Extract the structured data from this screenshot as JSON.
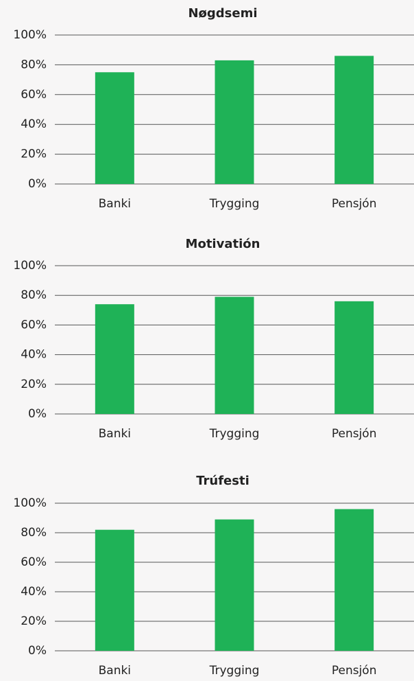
{
  "chart_data": [
    {
      "type": "bar",
      "title": "Nøgdsemi",
      "categories": [
        "Banki",
        "Trygging",
        "Pensjón"
      ],
      "values": [
        75,
        83,
        86
      ],
      "color": "#1fb257",
      "ylim": [
        0,
        100
      ],
      "yticks": [
        {
          "value": 0,
          "label": "0%"
        },
        {
          "value": 20,
          "label": "20%"
        },
        {
          "value": 40,
          "label": "40%"
        },
        {
          "value": 60,
          "label": "60%"
        },
        {
          "value": 80,
          "label": "80%"
        },
        {
          "value": 100,
          "label": "100%"
        }
      ],
      "grid": true
    },
    {
      "type": "bar",
      "title": "Motivatión",
      "categories": [
        "Banki",
        "Trygging",
        "Pensjón"
      ],
      "values": [
        74,
        79,
        76
      ],
      "color": "#1fb257",
      "ylim": [
        0,
        100
      ],
      "yticks": [
        {
          "value": 0,
          "label": "0%"
        },
        {
          "value": 20,
          "label": "20%"
        },
        {
          "value": 40,
          "label": "40%"
        },
        {
          "value": 60,
          "label": "60%"
        },
        {
          "value": 80,
          "label": "80%"
        },
        {
          "value": 100,
          "label": "100%"
        }
      ],
      "grid": true
    },
    {
      "type": "bar",
      "title": "Trúfesti",
      "categories": [
        "Banki",
        "Trygging",
        "Pensjón"
      ],
      "values": [
        82,
        89,
        96
      ],
      "color": "#1fb257",
      "ylim": [
        0,
        100
      ],
      "yticks": [
        {
          "value": 0,
          "label": "0%"
        },
        {
          "value": 20,
          "label": "20%"
        },
        {
          "value": 40,
          "label": "40%"
        },
        {
          "value": 60,
          "label": "60%"
        },
        {
          "value": 80,
          "label": "80%"
        },
        {
          "value": 100,
          "label": "100%"
        }
      ],
      "grid": true
    }
  ]
}
